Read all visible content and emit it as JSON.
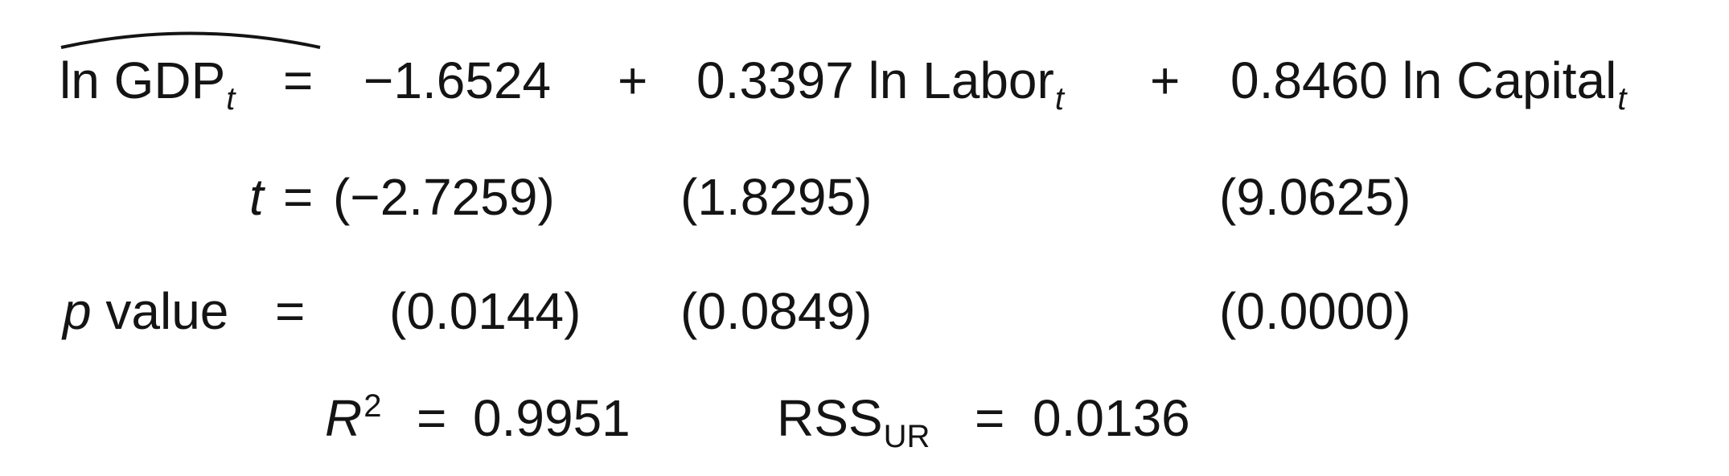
{
  "equation": {
    "lhs": "ln GDP",
    "lhs_sub": "t",
    "equals": "=",
    "intercept": "−1.6524",
    "plus1": "+",
    "labor_coef": "0.3397",
    "labor_term": "ln Labor",
    "labor_sub": "t",
    "plus2": "+",
    "capital_coef": "0.8460",
    "capital_term": "ln Capital",
    "capital_sub": "t"
  },
  "t_stats": {
    "label": "t",
    "equals": "=",
    "intercept": "(−2.7259)",
    "labor": "(1.8295)",
    "capital": "(9.0625)"
  },
  "p_values": {
    "label_italic": "p",
    "label_rest": "value",
    "equals": "=",
    "intercept": "(0.0144)",
    "labor": "(0.0849)",
    "capital": "(0.0000)"
  },
  "fit": {
    "r2_label": "R",
    "r2_sup": "2",
    "r2_equals": "=",
    "r2_value": "0.9951",
    "rss_label": "RSS",
    "rss_sub": "UR",
    "rss_equals": "=",
    "rss_value": "0.0136"
  }
}
